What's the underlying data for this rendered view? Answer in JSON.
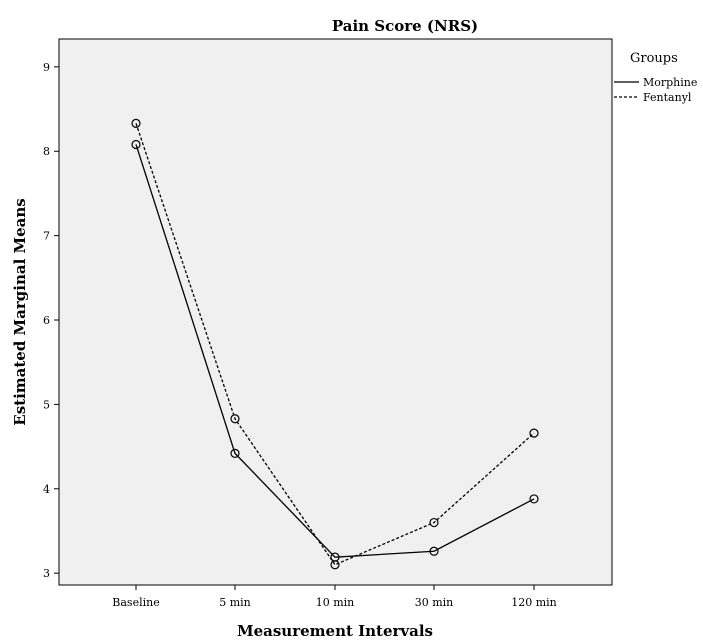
{
  "chart_data": {
    "type": "line",
    "title": "Pain Score (NRS)",
    "xlabel": "Measurement Intervals",
    "ylabel": "Estimated Marginal Means",
    "categories": [
      "Baseline",
      "5 min",
      "10 min",
      "30 min",
      "120 min"
    ],
    "ylim": [
      2.86,
      9.33
    ],
    "yticks": [
      "3",
      "4",
      "5",
      "6",
      "7",
      "8",
      "9"
    ],
    "grid": false,
    "background": "#f0f0f0",
    "legend": {
      "title": "Groups",
      "position": "right"
    },
    "series": [
      {
        "name": "Morphine",
        "line_style": "solid",
        "color": "#000000",
        "values": [
          8.08,
          4.42,
          3.19,
          3.26,
          3.88
        ]
      },
      {
        "name": "Fentanyl",
        "line_style": "dashed",
        "color": "#000000",
        "values": [
          8.33,
          4.83,
          3.1,
          3.6,
          4.66
        ]
      }
    ]
  }
}
